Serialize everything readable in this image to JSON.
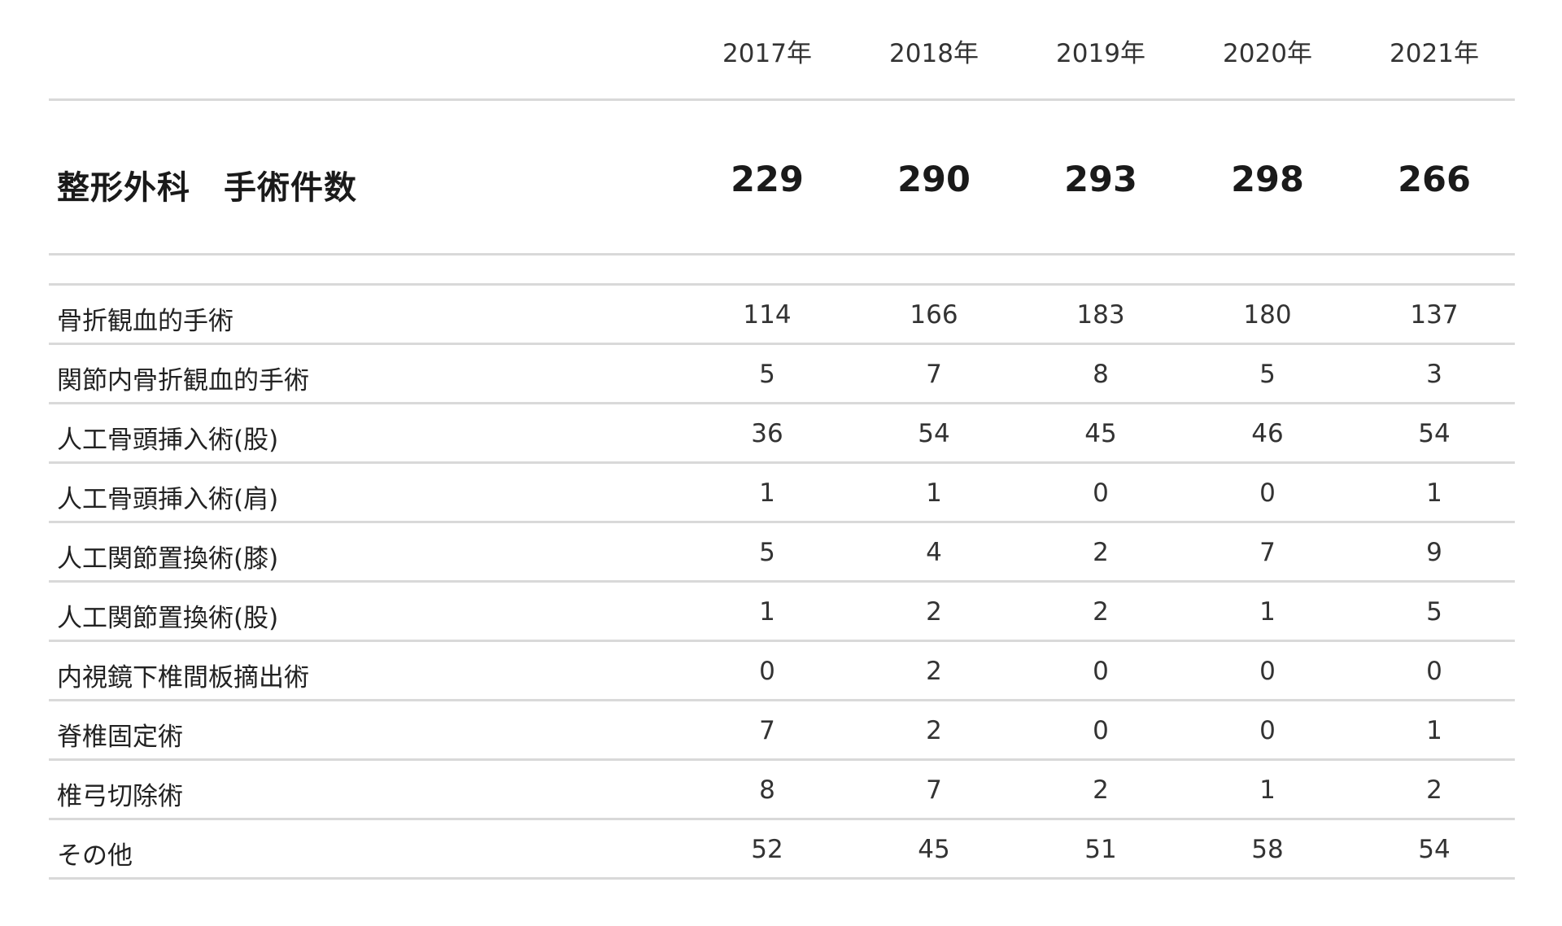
{
  "years": [
    "2017年",
    "2018年",
    "2019年",
    "2020年",
    "2021年"
  ],
  "total": {
    "label": "整形外科　手術件数",
    "values": [
      "229",
      "290",
      "293",
      "298",
      "266"
    ]
  },
  "rows": [
    {
      "label": "骨折観血的手術",
      "values": [
        "114",
        "166",
        "183",
        "180",
        "137"
      ]
    },
    {
      "label": "関節内骨折観血的手術",
      "values": [
        "5",
        "7",
        "8",
        "5",
        "3"
      ]
    },
    {
      "label": "人工骨頭挿入術(股)",
      "values": [
        "36",
        "54",
        "45",
        "46",
        "54"
      ]
    },
    {
      "label": "人工骨頭挿入術(肩)",
      "values": [
        "1",
        "1",
        "0",
        "0",
        "1"
      ]
    },
    {
      "label": "人工関節置換術(膝)",
      "values": [
        "5",
        "4",
        "2",
        "7",
        "9"
      ]
    },
    {
      "label": "人工関節置換術(股)",
      "values": [
        "1",
        "2",
        "2",
        "1",
        "5"
      ]
    },
    {
      "label": "内視鏡下椎間板摘出術",
      "values": [
        "0",
        "2",
        "0",
        "0",
        "0"
      ]
    },
    {
      "label": "脊椎固定術",
      "values": [
        "7",
        "2",
        "0",
        "0",
        "1"
      ]
    },
    {
      "label": "椎弓切除術",
      "values": [
        "8",
        "7",
        "2",
        "1",
        "2"
      ]
    },
    {
      "label": "その他",
      "values": [
        "52",
        "45",
        "51",
        "58",
        "54"
      ]
    }
  ]
}
